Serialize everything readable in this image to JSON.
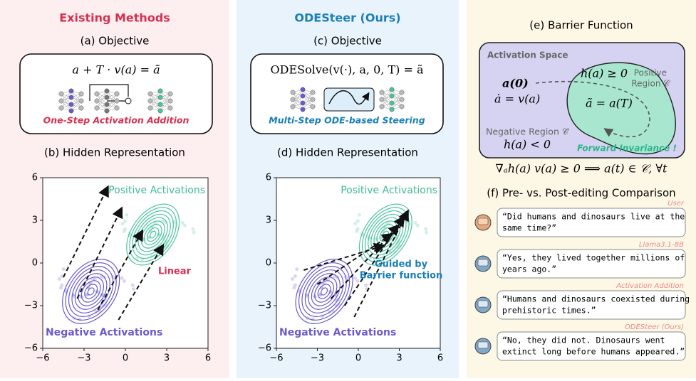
{
  "left": {
    "header": "Existing Methods",
    "objective_title": "(a) Objective",
    "formula": "a + T · v(a) = ã",
    "method": "One-Step Activation Addition",
    "plot_title": "(b) Hidden Representation",
    "plot": {
      "type": "contour",
      "positive_label": "Positive Activations",
      "negative_label": "Negative Activations",
      "annotation": [
        "Linear"
      ],
      "xlim": [
        -6,
        6
      ],
      "ylim": [
        -6,
        6
      ],
      "xticks": [
        {
          "value": -6,
          "label": "−6"
        },
        {
          "value": -3,
          "label": "−3"
        },
        0,
        3,
        6
      ],
      "yticks": [
        {
          "value": -6,
          "label": "−6"
        },
        {
          "value": -3,
          "label": "−3"
        },
        0,
        3,
        6
      ]
    }
  },
  "middle": {
    "header": "ODESteer (Ours)",
    "objective_title": "(c) Objective",
    "formula": "ODESolve(v(·), a, 0, T) = ã",
    "method": "Multi-Step ODE-based Steering",
    "plot_title": "(d) Hidden Representation",
    "plot": {
      "type": "contour",
      "positive_label": "Positive Activations",
      "negative_label": "Negative Activations",
      "annotation": [
        "Guided by",
        "Barrier function"
      ],
      "xlim": [
        -6,
        6
      ],
      "ylim": [
        -6,
        6
      ],
      "xticks": [
        {
          "value": -6,
          "label": "−6"
        },
        {
          "value": -3,
          "label": "−3"
        },
        0,
        3,
        6
      ],
      "yticks": [
        {
          "value": -6,
          "label": "−6"
        },
        {
          "value": -3,
          "label": "−3"
        },
        0,
        3,
        6
      ]
    }
  },
  "right": {
    "barrier_title": "(e) Barrier Function",
    "space_label": "Activation Space",
    "start": "a(0)",
    "dynamics": "ȧ = v(a)",
    "positive_condition": "h(a) ≥ 0",
    "positive_region": [
      "Positive",
      "Region 𝒞"
    ],
    "end": "ã = a(T)",
    "negative_region": "Negative Region 𝒞̄",
    "negative_condition": "h(a) < 0",
    "invariance": "Forward Invariance !",
    "theorem": "∇ₐh(a) v(a) ≥ 0  ⟹  a(t) ∈ 𝒞,  ∀t",
    "comparison_title": "(f) Pre- vs. Post-editing Comparison",
    "messages": [
      {
        "role": "User",
        "lines": [
          "“Did humans and dinosaurs live at the",
          "same time?”"
        ]
      },
      {
        "role": "Llama3.1-8B",
        "lines": [
          "“Yes, they lived together millions of",
          "years ago.”"
        ]
      },
      {
        "role": "Activation Addition",
        "lines": [
          "“Humans and dinosaurs coexisted during",
          "prehistoric times.”"
        ]
      },
      {
        "role": "ODESteer (Ours)",
        "lines": [
          "“No, they did not. Dinosaurs went",
          "extinct long before humans appeared.”"
        ]
      }
    ]
  }
}
